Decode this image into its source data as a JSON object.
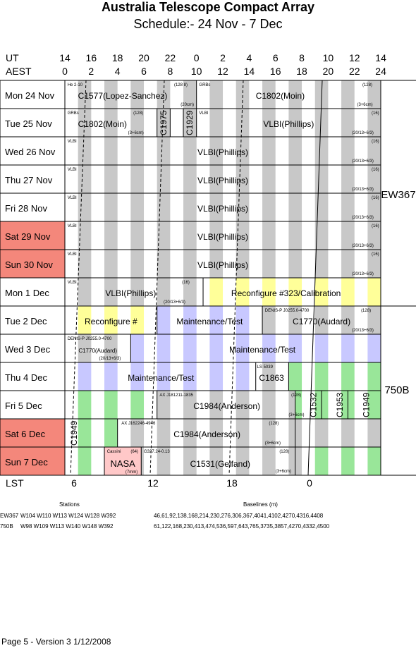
{
  "title": "Australia Telescope Compact Array",
  "subtitle": "Schedule:- 24 Nov - 7  Dec",
  "ut_label": "UT",
  "aest_label": "AEST",
  "lst_label": "LST",
  "ut_hours": [
    "14",
    "16",
    "18",
    "20",
    "22",
    "0",
    "2",
    "4",
    "6",
    "8",
    "10",
    "12",
    "14"
  ],
  "aest_hours": [
    "0",
    "2",
    "4",
    "6",
    "8",
    "10",
    "12",
    "14",
    "16",
    "18",
    "20",
    "22",
    "24"
  ],
  "lst_ticks": [
    "6",
    "12",
    "18",
    "0"
  ],
  "days": [
    {
      "label": "Mon  24 Nov",
      "weekend": false
    },
    {
      "label": "Tue  25 Nov",
      "weekend": false
    },
    {
      "label": "Wed  26 Nov",
      "weekend": false
    },
    {
      "label": "Thu  27 Nov",
      "weekend": false
    },
    {
      "label": "Fri   28 Nov",
      "weekend": false
    },
    {
      "label": "Sat  29 Nov",
      "weekend": true
    },
    {
      "label": "Sun  30 Nov",
      "weekend": true
    },
    {
      "label": "Mon  1  Dec",
      "weekend": false
    },
    {
      "label": "Tue   2  Dec",
      "weekend": false
    },
    {
      "label": "Wed  3  Dec",
      "weekend": false
    },
    {
      "label": "Thu   4  Dec",
      "weekend": false
    },
    {
      "label": "Fri    5  Dec",
      "weekend": false
    },
    {
      "label": "Sat   6  Dec",
      "weekend": true
    },
    {
      "label": "Sun   7  Dec",
      "weekend": true
    }
  ],
  "configs": [
    {
      "label": "EW367"
    },
    {
      "label": "750B"
    }
  ],
  "labels": {
    "r0_small_he": "He 2-10",
    "r0_c1577": "C1577(Lopez-Sanchez)",
    "r0_128s": "(128 8)",
    "r0_20cm": "(20cm)",
    "r0_grbs": "GRBs",
    "r0_c1802": "C1802(Moin)",
    "r0_128": "(128)",
    "r0_3p6": "(3+6cm)",
    "r1_grbs": "GRBs",
    "r1_128": "(128)",
    "r1_c1802": "C1802(Moin)",
    "r1_3p6": "(3+6cm)",
    "r1_c1975": "C1975",
    "r1_c1929": "C1929",
    "r1_vlbi_s": "VLBI",
    "r1_vlbi": "VLBI(Phillips)",
    "vlbi_s": "VLBI",
    "vlbi": "VLBI(Phillips)",
    "n16": "(16)",
    "n201363": "(20/13+6/3)",
    "r7_vlbi": "VLBI(Phillips)",
    "r7_reconf": "Reconfigure #323/Calibration",
    "r8_reconf": "Reconfigure #",
    "r8_maint": "Maintenance/Test",
    "r8_denis": "DENIS-P J0255.0-4700",
    "r8_128": "(128)",
    "r8_c1770": "C1770(Audard)",
    "r9_denis": "DENIS-P J0255.0-4700",
    "r9_c1770": "C1770(Audard)",
    "r9_maint": "Maintenance/Test",
    "r10_maint": "Maintenance/Test",
    "r10_ls": "LS 5039",
    "r10_c1863": "C1863",
    "r11_ax": "AX J181211-1835",
    "r11_c1984": "C1984(Anderson)",
    "r11_128": "(128)",
    "r11_3p6": "(3+6cm)",
    "r11_c1532": "C1532",
    "r11_c1953": "C1953",
    "r11_c1949": "C1949",
    "r12_c1949": "C1949",
    "r12_ax": "AX J162246-4946",
    "r12_c1984": "C1984(Anderson)",
    "r12_128": "(128)",
    "r12_3p6": "(3+6cm)",
    "r13_cassini": "Cassini",
    "r13_64": "(64)",
    "r13_nasa": "NASA",
    "r13_7mm": "(7mm)",
    "r13_g327": "G327.24-0.13",
    "r13_c1531": "C1531(Gelfand)",
    "r13_128": "(128)",
    "r13_3p6": "(3+6cm)"
  },
  "footer": {
    "stations_header": "Stations",
    "baselines_header": "Baselines (m)",
    "rows": [
      {
        "config": "EW367",
        "stations": "W104 W110 W113 W124 W128 W392",
        "baselines": "46,61,92,138,168,214,230,276,306,367,4041,4102,4270,4316,4408"
      },
      {
        "config": "750B",
        "stations": "W98 W109 W113 W140 W148 W392",
        "baselines": "61,122,168,230,413,474,536,597,643,765,3735,3857,4270,4332,4500"
      }
    ]
  },
  "page_footer": "Page 5 - Version 3  1/12/2008",
  "colors": {
    "weekend": "#f4877b",
    "grey": "#c8c8c8",
    "yellow": "#ffff99",
    "lavender": "#c8c8ff",
    "green": "#99e699",
    "pink": "#ffc8c8"
  }
}
